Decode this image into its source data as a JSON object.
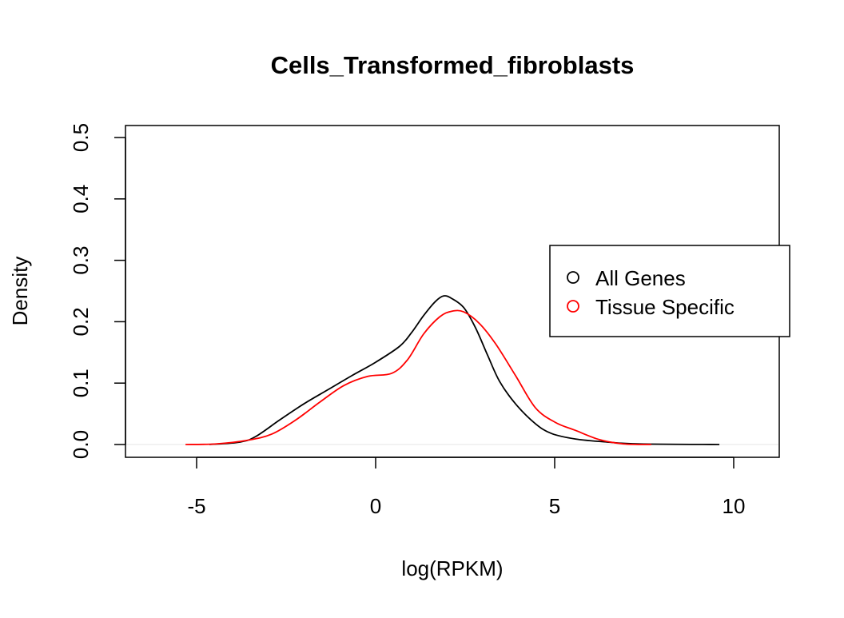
{
  "chart_data": {
    "type": "line",
    "title": "Cells_Transformed_fibroblasts",
    "xlabel": "log(RPKM)",
    "ylabel": "Density",
    "xlim": [
      -7,
      11.3
    ],
    "ylim": [
      -0.02,
      0.52
    ],
    "x_ticks": [
      -5,
      0,
      5,
      10
    ],
    "x_tick_labels": [
      "-5",
      "0",
      "5",
      "10"
    ],
    "y_ticks": [
      0.0,
      0.1,
      0.2,
      0.3,
      0.4,
      0.5
    ],
    "y_tick_labels": [
      "0.0",
      "0.1",
      "0.2",
      "0.3",
      "0.4",
      "0.5"
    ],
    "grid": false,
    "baseline_y": 0,
    "legend": {
      "placement": "right",
      "entries": [
        {
          "label": "All Genes",
          "color": "#000000",
          "marker": "open-circle"
        },
        {
          "label": "Tissue Specific",
          "color": "#ff0000",
          "marker": "open-circle"
        }
      ]
    },
    "series": [
      {
        "name": "All Genes",
        "color": "#000000",
        "x": [
          -4.64,
          -3.79,
          -3.35,
          -2.68,
          -2.01,
          -1.34,
          -0.67,
          0.0,
          0.67,
          1.0,
          1.34,
          1.67,
          1.9,
          2.12,
          2.46,
          2.79,
          3.13,
          3.46,
          3.91,
          4.46,
          4.91,
          5.58,
          6.47,
          7.37,
          9.6
        ],
        "y": [
          0.0,
          0.004,
          0.013,
          0.04,
          0.066,
          0.089,
          0.112,
          0.134,
          0.16,
          0.182,
          0.21,
          0.233,
          0.242,
          0.238,
          0.223,
          0.19,
          0.145,
          0.103,
          0.066,
          0.034,
          0.018,
          0.009,
          0.004,
          0.001,
          0.0
        ]
      },
      {
        "name": "Tissue Specific",
        "color": "#ff0000",
        "x": [
          -5.31,
          -4.46,
          -3.57,
          -2.9,
          -2.23,
          -1.56,
          -0.89,
          -0.22,
          0.45,
          0.89,
          1.34,
          1.79,
          2.12,
          2.46,
          2.9,
          3.35,
          3.91,
          4.46,
          5.02,
          5.58,
          6.25,
          6.92,
          7.7
        ],
        "y": [
          0.0,
          0.001,
          0.007,
          0.017,
          0.04,
          0.069,
          0.096,
          0.111,
          0.116,
          0.138,
          0.18,
          0.208,
          0.217,
          0.216,
          0.197,
          0.164,
          0.112,
          0.06,
          0.036,
          0.023,
          0.008,
          0.001,
          0.0
        ]
      }
    ]
  }
}
